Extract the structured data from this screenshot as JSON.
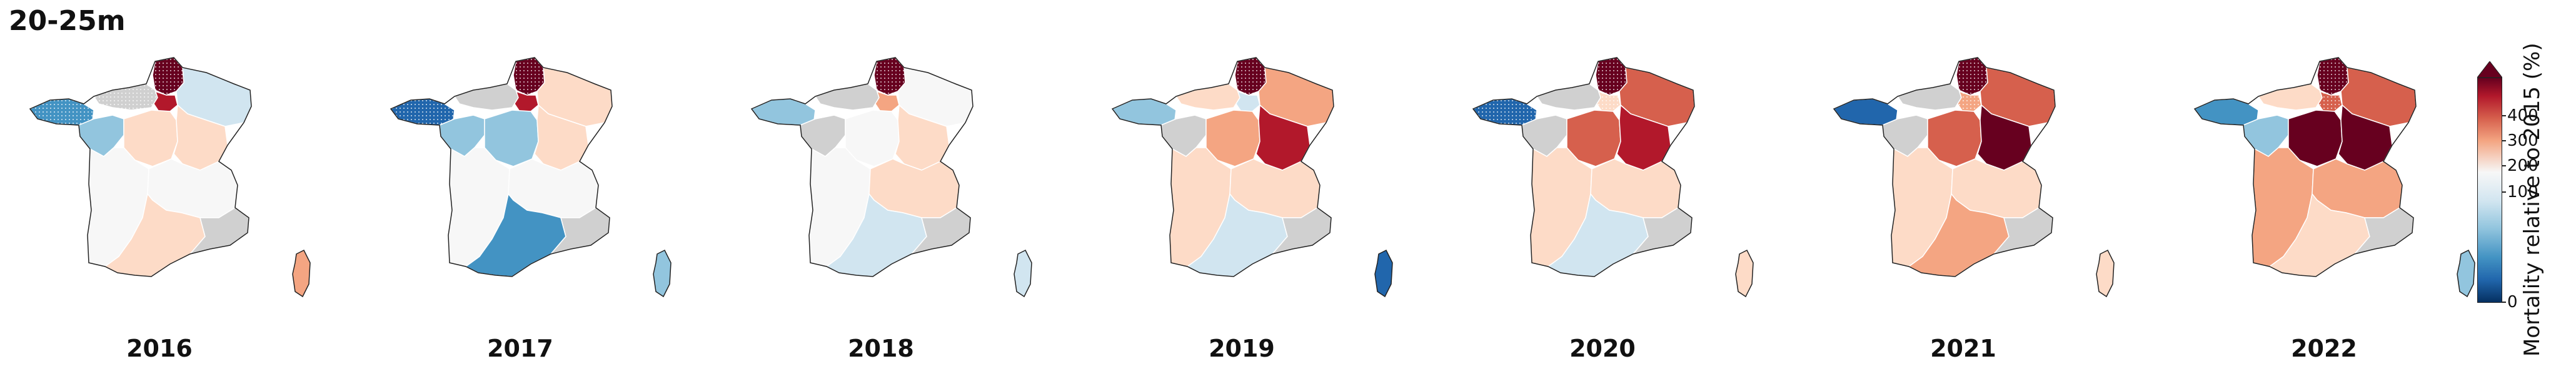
{
  "title": "20-25m",
  "colorbar": {
    "label": "Mortality relative to 2015 (%)",
    "ticks": [
      "400",
      "300",
      "200",
      "100",
      "0"
    ],
    "tick_values": [
      400,
      300,
      200,
      100,
      0
    ],
    "colormap": "RdBu_r",
    "extend": "max"
  },
  "map_data": {
    "type": "choropleth",
    "region_count": 13,
    "years": [
      {
        "year": "2016"
      },
      {
        "year": "2017"
      },
      {
        "year": "2018"
      },
      {
        "year": "2019"
      },
      {
        "year": "2020"
      },
      {
        "year": "2021"
      },
      {
        "year": "2022"
      }
    ]
  },
  "colors": {
    "dark_red": "#67001f",
    "red": "#b2182b",
    "mid_red": "#d6604d",
    "light_red": "#f4a582",
    "pale_red": "#fddbc7",
    "neutral": "#f7f7f7",
    "pale_blue": "#d1e5f0",
    "light_blue": "#92c5de",
    "blue": "#4393c3",
    "dark_blue": "#2166ac",
    "no_data": "#d0d0d0"
  }
}
